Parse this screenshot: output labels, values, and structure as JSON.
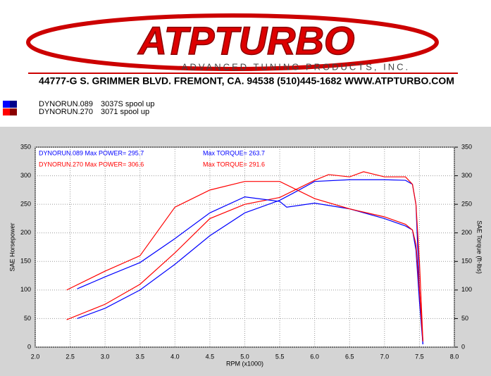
{
  "header": {
    "logo": "ATPTURBO",
    "tagline": "ADVANCED TUNING PRODUCTS, INC.",
    "address": "44777-G S. GRIMMER BLVD. FREMONT, CA. 94538 (510)445-1682 WWW.ATPTURBO.COM"
  },
  "legend": [
    {
      "name": "DYNORUN.089",
      "description": "3037S spool up",
      "color": "#0000ff",
      "color2": "#00008b"
    },
    {
      "name": "DYNORUN.270",
      "description": "3071 spool up",
      "color": "#ff0000",
      "color2": "#8b0000"
    }
  ],
  "chart_data": {
    "type": "line",
    "x_label": "RPM (x1000)",
    "y_label": "SAE Horsepower",
    "y2_label": "SAE Torque (ft-lbs)",
    "annotations": [
      {
        "text": "DYNORUN.089  Max POWER= 295.7",
        "color": "#0000ff"
      },
      {
        "text": "DYNORUN.270  Max POWER= 306.6",
        "color": "#ff0000"
      },
      {
        "text": "Max TORQUE= 263.7",
        "color": "#0000ff"
      },
      {
        "text": "Max TORQUE= 291.6",
        "color": "#ff0000"
      }
    ],
    "xlim": [
      2.0,
      8.0
    ],
    "xticks": [
      {
        "value": 2,
        "label": "2.0"
      },
      2.5,
      {
        "value": 3,
        "label": "3.0"
      },
      3.5,
      {
        "value": 4,
        "label": "4.0"
      },
      4.5,
      {
        "value": 5,
        "label": "5.0"
      },
      5.5,
      {
        "value": 6,
        "label": "6.0"
      },
      6.5,
      {
        "value": 7,
        "label": "7.0"
      },
      7.5,
      {
        "value": 8,
        "label": "8.0"
      }
    ],
    "ylim": [
      0,
      350
    ],
    "yticks": [
      0,
      50,
      100,
      150,
      200,
      250,
      300,
      350
    ],
    "y2lim": [
      0,
      350
    ],
    "y2ticks": [
      0,
      50,
      100,
      150,
      200,
      250,
      300,
      350
    ],
    "grid": true,
    "series": [
      {
        "color": "#0000ff",
        "axis": "y",
        "x": [
          2.6,
          3.0,
          3.5,
          4.0,
          4.5,
          5.0,
          5.5,
          5.7,
          6.0,
          6.5,
          7.0,
          7.3,
          7.4,
          7.45,
          7.5,
          7.55
        ],
        "values": [
          50,
          68,
          100,
          145,
          195,
          235,
          257,
          270,
          290,
          293,
          293,
          292,
          285,
          250,
          100,
          5
        ]
      },
      {
        "color": "#ff0000",
        "axis": "y",
        "x": [
          2.45,
          3.0,
          3.5,
          4.0,
          4.5,
          5.0,
          5.5,
          6.0,
          6.2,
          6.5,
          6.7,
          7.0,
          7.3,
          7.4,
          7.45,
          7.5,
          7.55
        ],
        "values": [
          48,
          75,
          110,
          165,
          225,
          250,
          262,
          292,
          302,
          298,
          307,
          298,
          298,
          285,
          250,
          150,
          10
        ]
      },
      {
        "color": "#0000ff",
        "axis": "y2",
        "x": [
          2.6,
          3.0,
          3.5,
          4.0,
          4.5,
          5.0,
          5.5,
          5.6,
          6.0,
          6.5,
          7.0,
          7.3,
          7.4,
          7.45,
          7.5,
          7.55
        ],
        "values": [
          102,
          123,
          148,
          190,
          235,
          263,
          255,
          245,
          252,
          242,
          225,
          212,
          205,
          170,
          80,
          5
        ]
      },
      {
        "color": "#ff0000",
        "axis": "y2",
        "x": [
          2.45,
          3.0,
          3.5,
          4.0,
          4.5,
          5.0,
          5.5,
          6.0,
          6.5,
          7.0,
          7.3,
          7.4,
          7.45,
          7.5,
          7.55
        ],
        "values": [
          100,
          133,
          160,
          245,
          275,
          290,
          290,
          260,
          242,
          228,
          215,
          205,
          180,
          100,
          10
        ]
      }
    ]
  }
}
